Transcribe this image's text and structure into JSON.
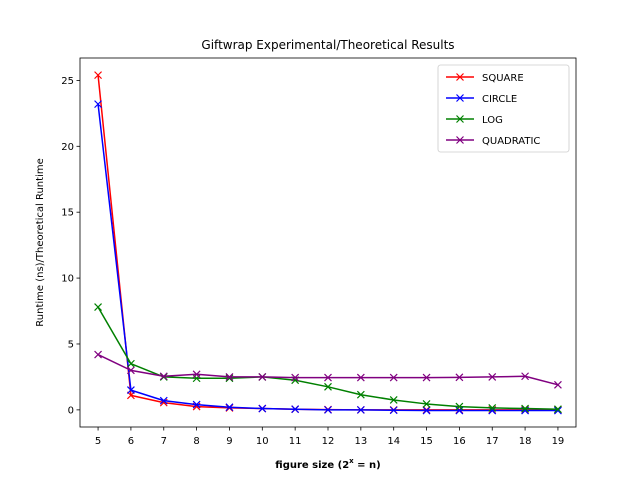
{
  "chart_data": {
    "type": "line",
    "title": "Giftwrap Experimental/Theoretical Results",
    "xlabel_prefix": "figure size (2",
    "xlabel_sup": "x",
    "xlabel_suffix": " = n)",
    "ylabel": "Runtime (ns)/Theoretical Runtime",
    "x": [
      5,
      6,
      7,
      8,
      9,
      10,
      11,
      12,
      13,
      14,
      15,
      16,
      17,
      18,
      19
    ],
    "xlim": [
      4.45,
      19.55
    ],
    "ylim": [
      -1.3,
      26.7
    ],
    "yticks": [
      0,
      5,
      10,
      15,
      20,
      25
    ],
    "grid": false,
    "legend_position": "top-right",
    "marker": "x",
    "series": [
      {
        "name": "SQUARE",
        "color": "#ff0000",
        "values": [
          25.4,
          1.1,
          0.55,
          0.25,
          0.15,
          0.1,
          0.05,
          0.02,
          0.0,
          0.0,
          0.0,
          0.0,
          0.0,
          0.0,
          0.0
        ]
      },
      {
        "name": "CIRCLE",
        "color": "#0000ff",
        "values": [
          23.2,
          1.5,
          0.7,
          0.4,
          0.2,
          0.1,
          0.05,
          0.0,
          0.0,
          -0.03,
          -0.05,
          -0.05,
          -0.05,
          -0.05,
          -0.05
        ]
      },
      {
        "name": "LOG",
        "color": "#008000",
        "values": [
          7.8,
          3.5,
          2.5,
          2.4,
          2.4,
          2.5,
          2.25,
          1.75,
          1.15,
          0.75,
          0.45,
          0.25,
          0.15,
          0.1,
          0.05
        ]
      },
      {
        "name": "QUADRATIC",
        "color": "#800080",
        "values": [
          4.2,
          3.0,
          2.55,
          2.7,
          2.5,
          2.5,
          2.45,
          2.45,
          2.45,
          2.45,
          2.45,
          2.47,
          2.5,
          2.55,
          1.9
        ]
      }
    ]
  }
}
